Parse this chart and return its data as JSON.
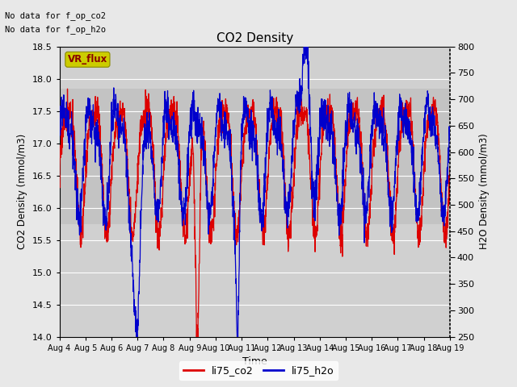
{
  "title": "CO2 Density",
  "xlabel": "Time",
  "ylabel_left": "CO2 Density (mmol/m3)",
  "ylabel_right": "H2O Density (mmol/m3)",
  "ylim_left": [
    14.0,
    18.5
  ],
  "ylim_right": [
    250,
    800
  ],
  "yticks_left": [
    14.0,
    14.5,
    15.0,
    15.5,
    16.0,
    16.5,
    17.0,
    17.5,
    18.0,
    18.5
  ],
  "yticks_right": [
    250,
    300,
    350,
    400,
    450,
    500,
    550,
    600,
    650,
    700,
    750,
    800
  ],
  "xtick_labels": [
    "Aug 4",
    "Aug 5",
    "Aug 6",
    "Aug 7",
    "Aug 8",
    "Aug 9",
    "Aug 10",
    "Aug 11",
    "Aug 12",
    "Aug 13",
    "Aug 14",
    "Aug 15",
    "Aug 16",
    "Aug 17",
    "Aug 18",
    "Aug 19"
  ],
  "nodata_text1": "No data for f_op_co2",
  "nodata_text2": "No data for f_op_h2o",
  "vr_flux_label": "VR_flux",
  "legend_co2": "li75_co2",
  "legend_h2o": "li75_h2o",
  "color_co2": "#dd0000",
  "color_h2o": "#0000cc",
  "fig_bg_color": "#e8e8e8",
  "plot_bg_color": "#d0d0d0",
  "band_color": "#c0c0c0",
  "band_lo": 15.75,
  "band_hi": 17.85,
  "vr_flux_bg": "#cccc00",
  "vr_flux_text_color": "#880000",
  "grid_color": "#ffffff",
  "figw": 6.4,
  "figh": 4.8,
  "dpi": 100
}
